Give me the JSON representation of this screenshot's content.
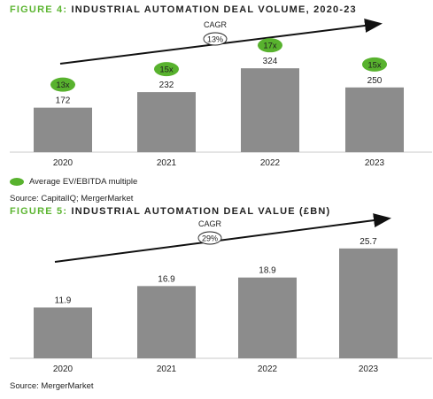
{
  "figure1": {
    "title_num": "FIGURE 4:",
    "title_text": "INDUSTRIAL AUTOMATION DEAL VOLUME, 2020-23",
    "legend_label": "Average EV/EBITDA multiple",
    "source": "Source: CapitalIQ; MergerMarket",
    "cagr_label": "CAGR",
    "cagr_value": "13%"
  },
  "figure2": {
    "title_num": "FIGURE 5:",
    "title_text": "INDUSTRIAL AUTOMATION DEAL VALUE (£BN)",
    "source": "Source: MergerMarket",
    "cagr_label": "CAGR",
    "cagr_value": "29%"
  },
  "colors": {
    "bar": "#8c8c8c",
    "badge": "#58b22e",
    "title_accent": "#5cb531"
  },
  "chart_data": [
    {
      "type": "bar",
      "title": "INDUSTRIAL AUTOMATION DEAL VOLUME, 2020-23",
      "categories": [
        "2020",
        "2021",
        "2022",
        "2023"
      ],
      "series": [
        {
          "values": [
            172,
            232,
            324,
            250
          ]
        },
        {
          "name": "Average EV/EBITDA multiple",
          "values": [
            13,
            15,
            17,
            15
          ],
          "labels": [
            "13x",
            "15x",
            "17x",
            "15x"
          ]
        }
      ],
      "ylim": [
        0,
        340
      ],
      "annotation": "CAGR 13%",
      "legend": "bottom-left",
      "grid": false
    },
    {
      "type": "bar",
      "title": "INDUSTRIAL AUTOMATION DEAL VALUE (£BN)",
      "categories": [
        "2020",
        "2021",
        "2022",
        "2023"
      ],
      "series": [
        {
          "values": [
            11.9,
            16.9,
            18.9,
            25.7
          ],
          "labels": [
            "11.9",
            "16.9",
            "18.9",
            "25.7"
          ]
        }
      ],
      "ylim": [
        0,
        26.7
      ],
      "annotation": "CAGR 29%",
      "grid": false
    }
  ]
}
